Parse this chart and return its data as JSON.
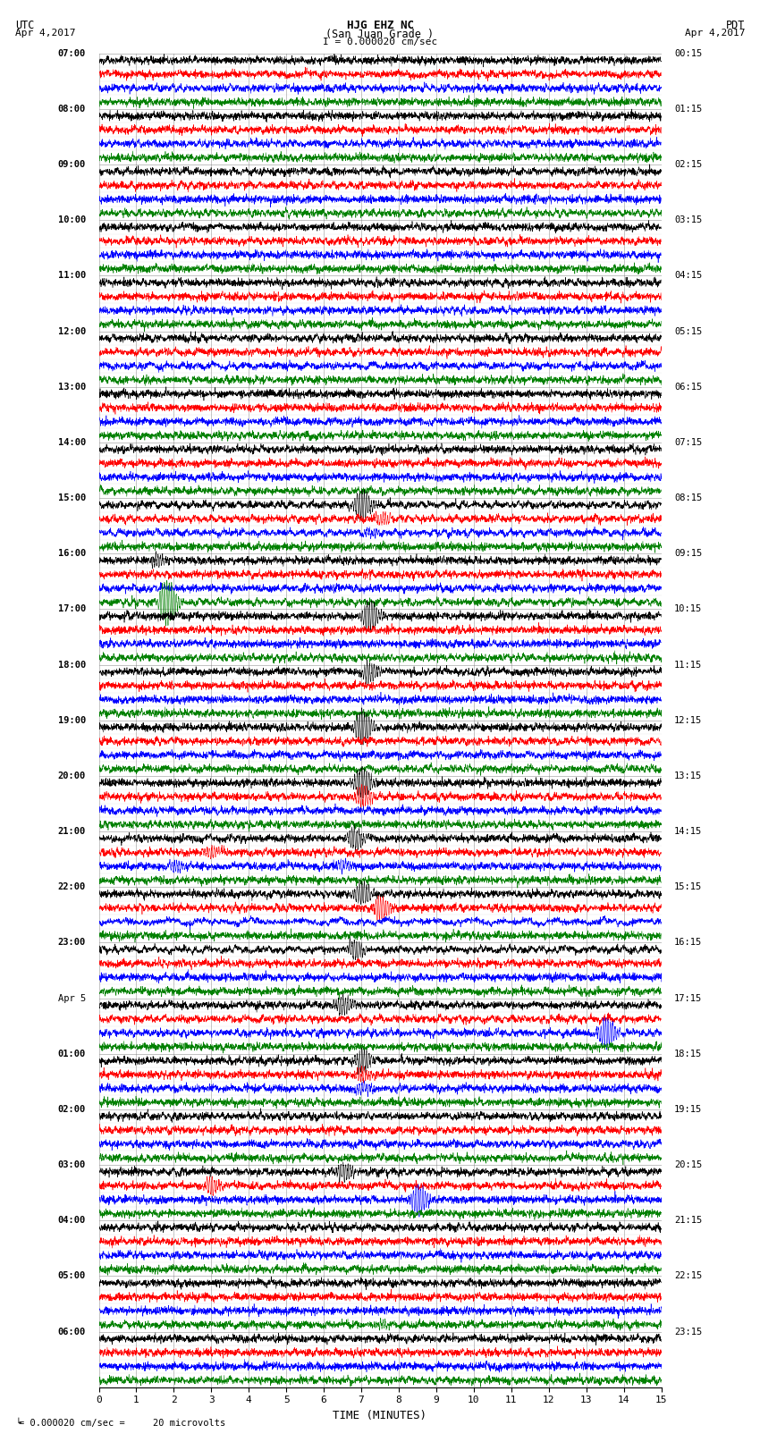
{
  "title_line1": "HJG EHZ NC",
  "title_line2": "(San Juan Grade )",
  "title_scale": "I = 0.000020 cm/sec",
  "left_header": "UTC",
  "left_date": "Apr 4,2017",
  "right_header": "PDT",
  "right_date": "Apr 4,2017",
  "xlabel": "TIME (MINUTES)",
  "bottom_note": "= 0.000020 cm/sec =     20 microvolts",
  "xmin": 0,
  "xmax": 15,
  "fig_width": 8.5,
  "fig_height": 16.13,
  "dpi": 100,
  "bg_color": "#ffffff",
  "plot_bg_color": "#ffffff",
  "n_rows": 96,
  "colors": [
    "black",
    "red",
    "blue",
    "green"
  ],
  "left_times": [
    "07:00",
    "",
    "",
    "",
    "08:00",
    "",
    "",
    "",
    "09:00",
    "",
    "",
    "",
    "10:00",
    "",
    "",
    "",
    "11:00",
    "",
    "",
    "",
    "12:00",
    "",
    "",
    "",
    "13:00",
    "",
    "",
    "",
    "14:00",
    "",
    "",
    "",
    "15:00",
    "",
    "",
    "",
    "16:00",
    "",
    "",
    "",
    "17:00",
    "",
    "",
    "",
    "18:00",
    "",
    "",
    "",
    "19:00",
    "",
    "",
    "",
    "20:00",
    "",
    "",
    "",
    "21:00",
    "",
    "",
    "",
    "22:00",
    "",
    "",
    "",
    "23:00",
    "",
    "",
    "",
    "Apr 5",
    "",
    "",
    "",
    "01:00",
    "",
    "",
    "",
    "02:00",
    "",
    "",
    "",
    "03:00",
    "",
    "",
    "",
    "04:00",
    "",
    "",
    "",
    "05:00",
    "",
    "",
    "",
    "06:00",
    "",
    "",
    ""
  ],
  "right_times": [
    "00:15",
    "",
    "",
    "",
    "01:15",
    "",
    "",
    "",
    "02:15",
    "",
    "",
    "",
    "03:15",
    "",
    "",
    "",
    "04:15",
    "",
    "",
    "",
    "05:15",
    "",
    "",
    "",
    "06:15",
    "",
    "",
    "",
    "07:15",
    "",
    "",
    "",
    "08:15",
    "",
    "",
    "",
    "09:15",
    "",
    "",
    "",
    "10:15",
    "",
    "",
    "",
    "11:15",
    "",
    "",
    "",
    "12:15",
    "",
    "",
    "",
    "13:15",
    "",
    "",
    "",
    "14:15",
    "",
    "",
    "",
    "15:15",
    "",
    "",
    "",
    "16:15",
    "",
    "",
    "",
    "17:15",
    "",
    "",
    "",
    "18:15",
    "",
    "",
    "",
    "19:15",
    "",
    "",
    "",
    "20:15",
    "",
    "",
    "",
    "21:15",
    "",
    "",
    "",
    "22:15",
    "",
    "",
    "",
    "23:15",
    "",
    "",
    ""
  ],
  "vertical_grid_mins": [
    0,
    1,
    2,
    3,
    4,
    5,
    6,
    7,
    8,
    9,
    10,
    11,
    12,
    13,
    14,
    15
  ]
}
